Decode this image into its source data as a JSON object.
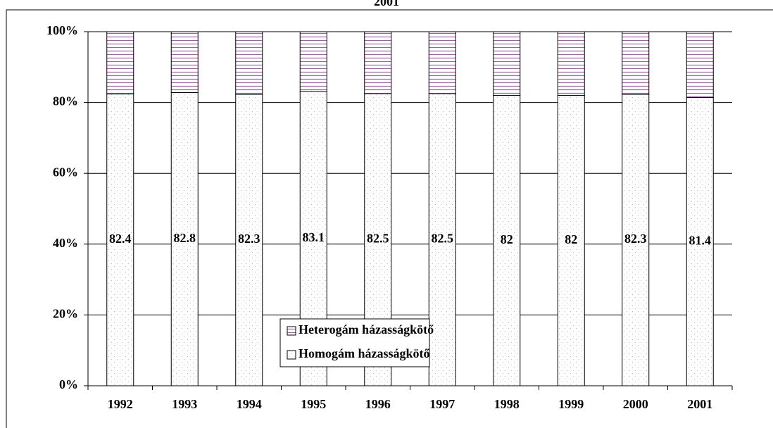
{
  "chart_data": {
    "type": "stacked_bar",
    "title": "2001",
    "categories": [
      "1992",
      "1993",
      "1994",
      "1995",
      "1996",
      "1997",
      "1998",
      "1999",
      "2000",
      "2001"
    ],
    "series": [
      {
        "name": "Homogám házasságkötő",
        "color": "#ffffff",
        "values": [
          82.4,
          82.8,
          82.3,
          83.1,
          82.5,
          82.5,
          82,
          82,
          82.3,
          81.4
        ]
      },
      {
        "name": "Heterogám házasságkötő",
        "color": "#993366",
        "values": [
          17.6,
          17.2,
          17.7,
          16.9,
          17.5,
          17.5,
          18,
          18,
          17.7,
          18.6
        ]
      }
    ],
    "ylim": [
      0,
      100
    ],
    "yticks": [
      {
        "value": 0,
        "label": "0%"
      },
      {
        "value": 20,
        "label": "20%"
      },
      {
        "value": 40,
        "label": "40%"
      },
      {
        "value": 60,
        "label": "60%"
      },
      {
        "value": 80,
        "label": "80%"
      },
      {
        "value": 100,
        "label": "100%"
      }
    ],
    "grid": true
  }
}
